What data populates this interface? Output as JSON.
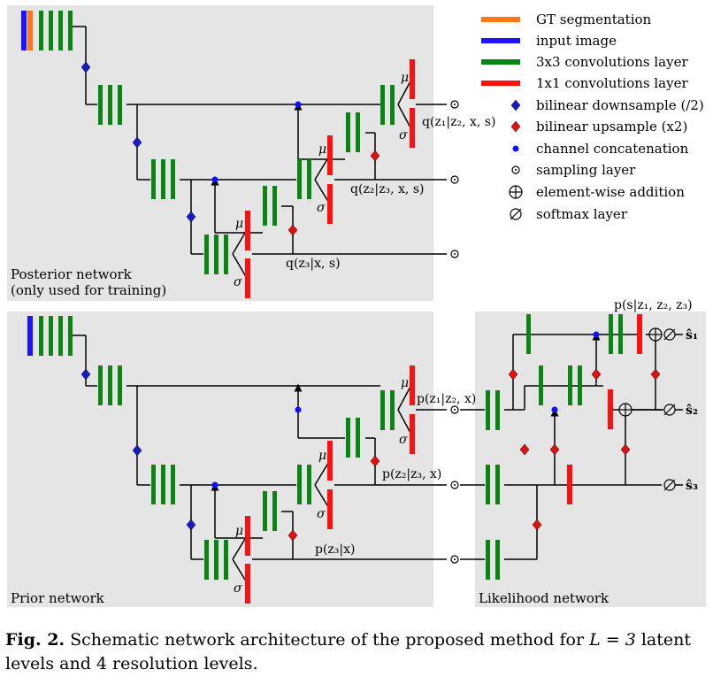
{
  "panels": {
    "posterior_title_1": "Posterior network",
    "posterior_title_2": "(only used for training)",
    "prior_title": "Prior network",
    "likelihood_title": "Likelihood network"
  },
  "legend": {
    "gt_segmentation": "GT segmentation",
    "input_image": "input image",
    "conv3x3": "3x3 convolutions layer",
    "conv1x1": "1x1 convolutions layer",
    "downsample": "bilinear downsample (/2)",
    "upsample": "bilinear upsample (x2)",
    "concat": "channel concatenation",
    "sampling": "sampling layer",
    "addition": "element-wise addition",
    "softmax": "softmax layer"
  },
  "labels": {
    "mu": "μ",
    "sigma": "σ",
    "q_z1": "q(z₁|z₂, x, s)",
    "q_z2": "q(z₂|z₃, x, s)",
    "q_z3": "q(z₃|x, s)",
    "p_z1": "p(z₁|z₂, x)",
    "p_z2": "p(z₂|z₃, x)",
    "p_z3": "p(z₃|x)",
    "p_s": "p(s|z₁, z₂, z₃)",
    "s1": "ŝ₁",
    "s2": "ŝ₂",
    "s3": "ŝ₃"
  },
  "caption": {
    "label": "Fig. 2.",
    "text_1": " Schematic network architecture of the proposed method for ",
    "math": "L = 3",
    "text_2": " latent levels and 4 resolution levels."
  },
  "colors": {
    "panel_bg": "#e5e5e5",
    "gt_orange": "#ff7418",
    "input_blue": "#1a14ff",
    "conv3x3_green": "#0a8514",
    "conv1x1_red": "#ff1010",
    "down_diamond": "#1919c8",
    "up_diamond": "#e41010",
    "concat_dot": "#1010ff"
  }
}
